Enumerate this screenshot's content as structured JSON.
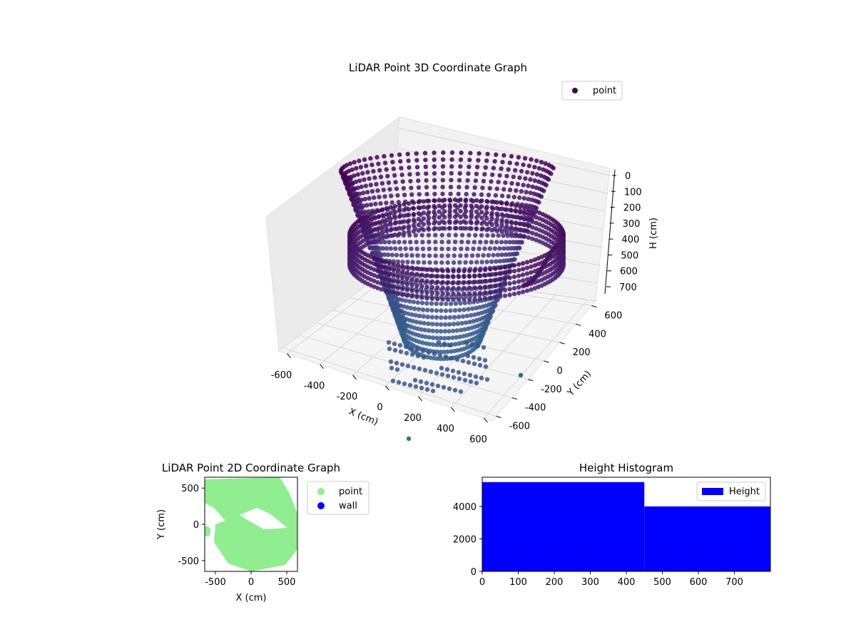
{
  "chart_data": [
    {
      "type": "scatter3d",
      "title": "LiDAR Point 3D Coordinate Graph",
      "xlabel": "X (cm)",
      "ylabel": "Y (cm)",
      "zlabel": "H (cm)",
      "xlim": [
        -650,
        650
      ],
      "ylim": [
        -650,
        650
      ],
      "zlim": [
        0,
        780
      ],
      "z_inverted": true,
      "x_ticks": [
        "-600",
        "-400",
        "-200",
        "0",
        "200",
        "400",
        "600"
      ],
      "y_ticks": [
        "-600",
        "-400",
        "-200",
        "0",
        "200",
        "400",
        "600"
      ],
      "z_ticks": [
        "0",
        "100",
        "200",
        "300",
        "400",
        "500",
        "600",
        "700"
      ],
      "legend": [
        "point"
      ],
      "legend_position": "upper-right",
      "colormap": "viridis",
      "marker_color": "#440154"
    },
    {
      "type": "scatter",
      "title": "LiDAR Point 2D Coordinate Graph",
      "xlabel": "X (cm)",
      "ylabel": "Y (cm)",
      "xlim": [
        -650,
        650
      ],
      "ylim": [
        -650,
        650
      ],
      "x_ticks": [
        "-500",
        "0",
        "500"
      ],
      "y_ticks": [
        "-500",
        "0",
        "500"
      ],
      "series": [
        {
          "name": "point",
          "color": "#90ee90"
        },
        {
          "name": "wall",
          "color": "#0000ff"
        }
      ],
      "legend_position": "outside-right"
    },
    {
      "type": "bar",
      "title": "Height Histogram",
      "xlabel": "",
      "ylabel": "",
      "bins": [
        {
          "start": 0,
          "end": 450,
          "value": 5500
        },
        {
          "start": 450,
          "end": 800,
          "value": 4000
        }
      ],
      "xlim": [
        0,
        800
      ],
      "ylim": [
        0,
        5800
      ],
      "x_ticks": [
        "0",
        "100",
        "200",
        "300",
        "400",
        "500",
        "600",
        "700"
      ],
      "y_ticks": [
        "0",
        "2000",
        "4000"
      ],
      "series": [
        {
          "name": "Height",
          "color": "#0000ff"
        }
      ],
      "legend_position": "upper-right"
    }
  ]
}
